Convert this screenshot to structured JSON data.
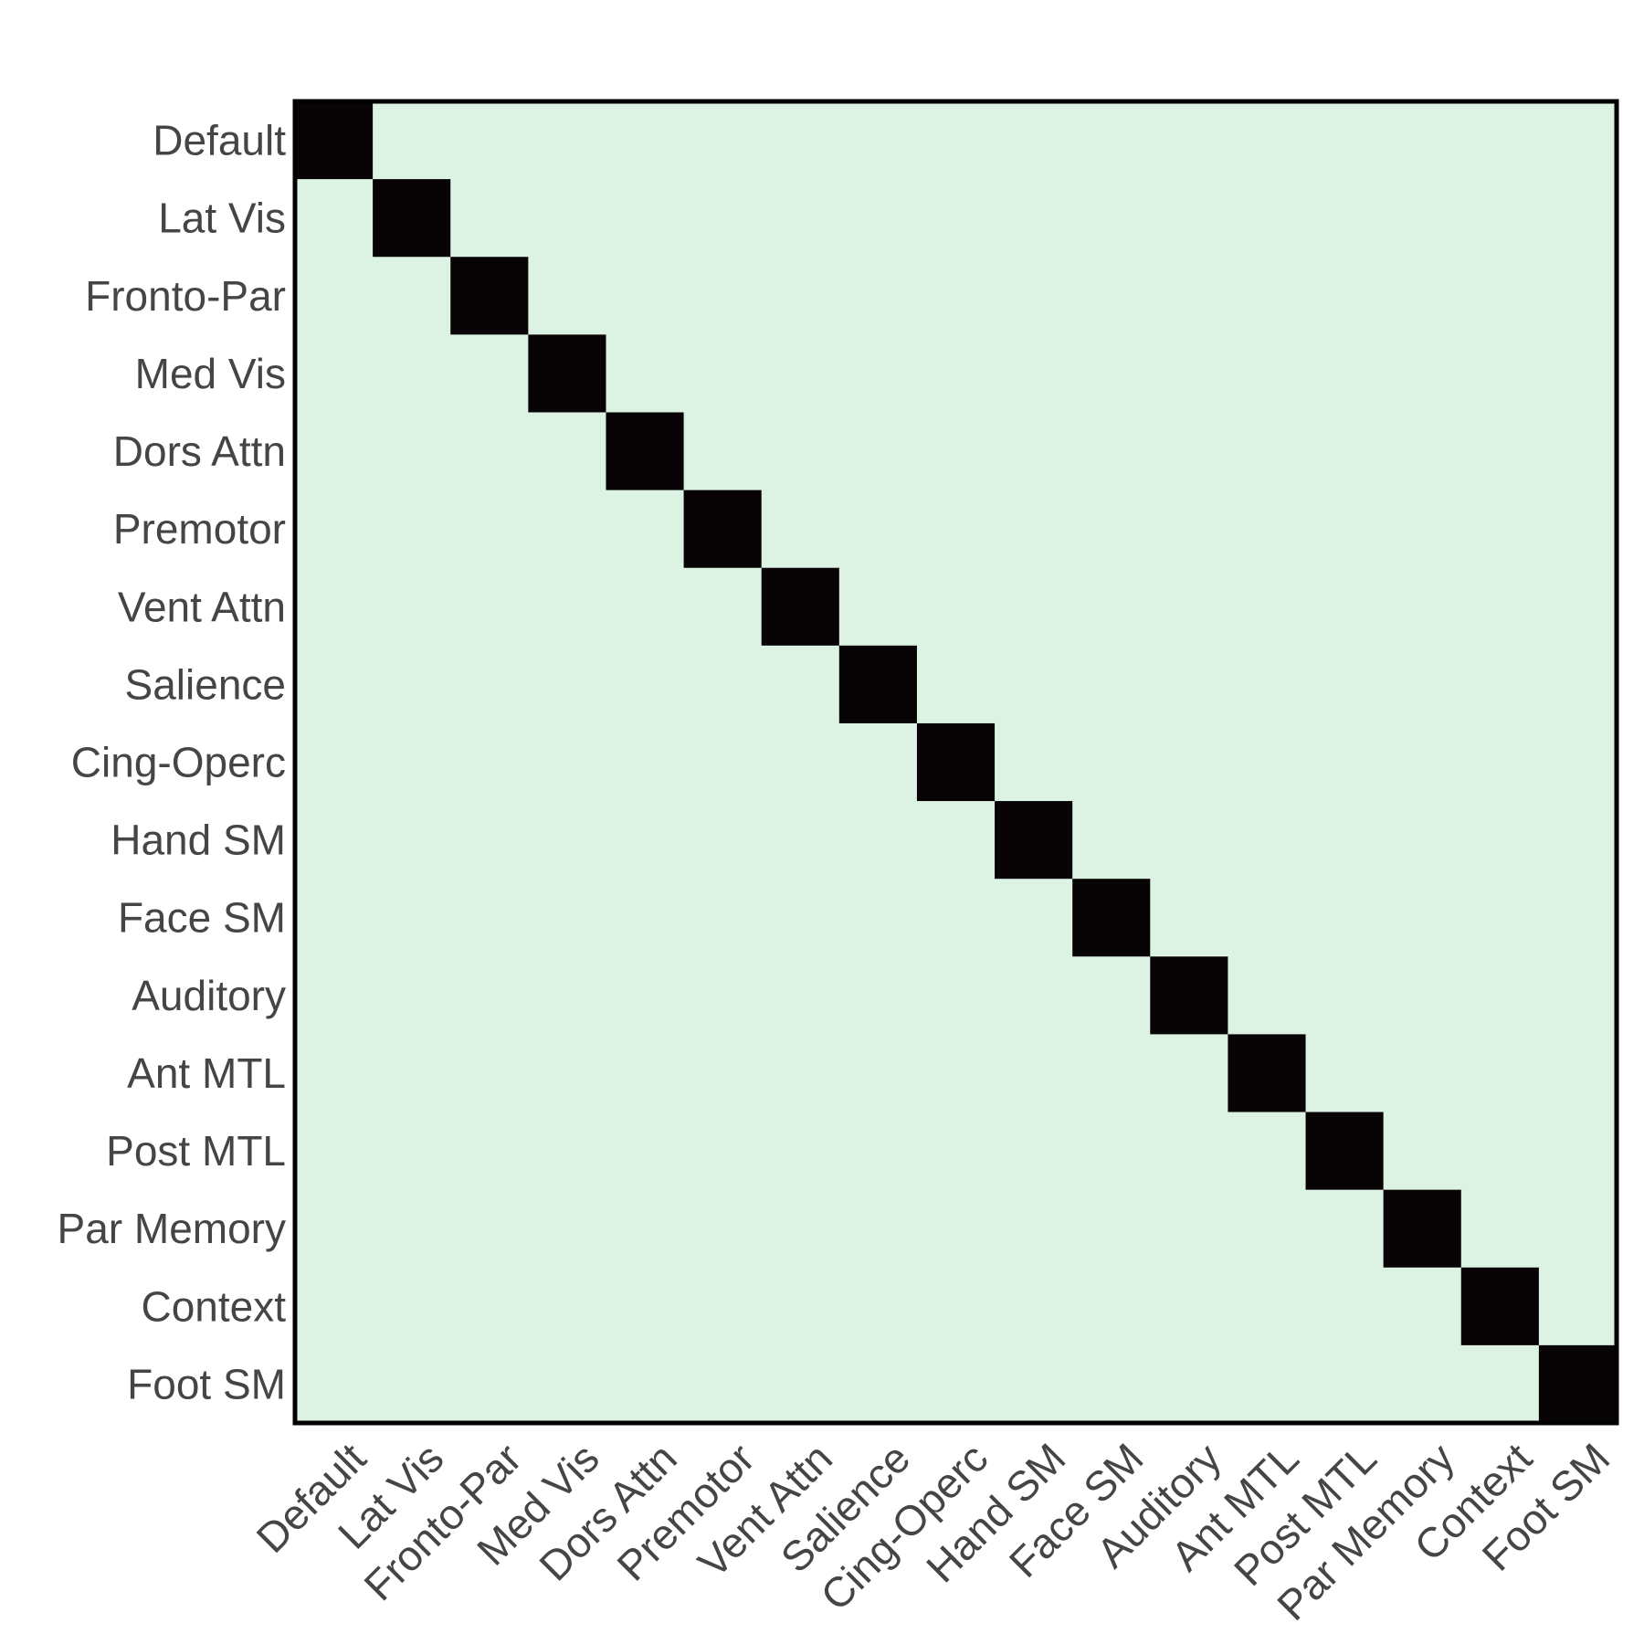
{
  "chart_data": {
    "type": "heatmap",
    "title": "",
    "xlabel": "",
    "ylabel": "",
    "categories": [
      "Default",
      "Lat Vis",
      "Fronto-Par",
      "Med Vis",
      "Dors Attn",
      "Premotor",
      "Vent Attn",
      "Salience",
      "Cing-Operc",
      "Hand SM",
      "Face SM",
      "Auditory",
      "Ant MTL",
      "Post MTL",
      "Par Memory",
      "Context",
      "Foot SM"
    ],
    "x_labels": [
      "Default",
      "Lat Vis",
      "Fronto-Par",
      "Med Vis",
      "Dors Attn",
      "Premotor",
      "Vent Attn",
      "Salience",
      "Cing-Operc",
      "Hand SM",
      "Face SM",
      "Auditory",
      "Ant MTL",
      "Post MTL",
      "Par Memory",
      "Context",
      "Foot SM"
    ],
    "y_labels": [
      "Default",
      "Lat Vis",
      "Fronto-Par",
      "Med Vis",
      "Dors Attn",
      "Premotor",
      "Vent Attn",
      "Salience",
      "Cing-Operc",
      "Hand SM",
      "Face SM",
      "Auditory",
      "Ant MTL",
      "Post MTL",
      "Par Memory",
      "Context",
      "Foot SM"
    ],
    "values": [
      [
        1,
        0,
        0,
        0,
        0,
        0,
        0,
        0,
        0,
        0,
        0,
        0,
        0,
        0,
        0,
        0,
        0
      ],
      [
        0,
        1,
        0,
        0,
        0,
        0,
        0,
        0,
        0,
        0,
        0,
        0,
        0,
        0,
        0,
        0,
        0
      ],
      [
        0,
        0,
        1,
        0,
        0,
        0,
        0,
        0,
        0,
        0,
        0,
        0,
        0,
        0,
        0,
        0,
        0
      ],
      [
        0,
        0,
        0,
        1,
        0,
        0,
        0,
        0,
        0,
        0,
        0,
        0,
        0,
        0,
        0,
        0,
        0
      ],
      [
        0,
        0,
        0,
        0,
        1,
        0,
        0,
        0,
        0,
        0,
        0,
        0,
        0,
        0,
        0,
        0,
        0
      ],
      [
        0,
        0,
        0,
        0,
        0,
        1,
        0,
        0,
        0,
        0,
        0,
        0,
        0,
        0,
        0,
        0,
        0
      ],
      [
        0,
        0,
        0,
        0,
        0,
        0,
        1,
        0,
        0,
        0,
        0,
        0,
        0,
        0,
        0,
        0,
        0
      ],
      [
        0,
        0,
        0,
        0,
        0,
        0,
        0,
        1,
        0,
        0,
        0,
        0,
        0,
        0,
        0,
        0,
        0
      ],
      [
        0,
        0,
        0,
        0,
        0,
        0,
        0,
        0,
        1,
        0,
        0,
        0,
        0,
        0,
        0,
        0,
        0
      ],
      [
        0,
        0,
        0,
        0,
        0,
        0,
        0,
        0,
        0,
        1,
        0,
        0,
        0,
        0,
        0,
        0,
        0
      ],
      [
        0,
        0,
        0,
        0,
        0,
        0,
        0,
        0,
        0,
        0,
        1,
        0,
        0,
        0,
        0,
        0,
        0
      ],
      [
        0,
        0,
        0,
        0,
        0,
        0,
        0,
        0,
        0,
        0,
        0,
        1,
        0,
        0,
        0,
        0,
        0
      ],
      [
        0,
        0,
        0,
        0,
        0,
        0,
        0,
        0,
        0,
        0,
        0,
        0,
        1,
        0,
        0,
        0,
        0
      ],
      [
        0,
        0,
        0,
        0,
        0,
        0,
        0,
        0,
        0,
        0,
        0,
        0,
        0,
        1,
        0,
        0,
        0
      ],
      [
        0,
        0,
        0,
        0,
        0,
        0,
        0,
        0,
        0,
        0,
        0,
        0,
        0,
        0,
        1,
        0,
        0
      ],
      [
        0,
        0,
        0,
        0,
        0,
        0,
        0,
        0,
        0,
        0,
        0,
        0,
        0,
        0,
        0,
        1,
        0
      ],
      [
        0,
        0,
        0,
        0,
        0,
        0,
        0,
        0,
        0,
        0,
        0,
        0,
        0,
        0,
        0,
        0,
        1
      ]
    ],
    "value_range": [
      0,
      1
    ],
    "colors": {
      "low": "#dcf3e4",
      "high": "#080405",
      "frame": "#000000",
      "tick_text": "#454545"
    },
    "grid": false,
    "legend": "none",
    "x_tick_rotation": "45 degrees"
  }
}
